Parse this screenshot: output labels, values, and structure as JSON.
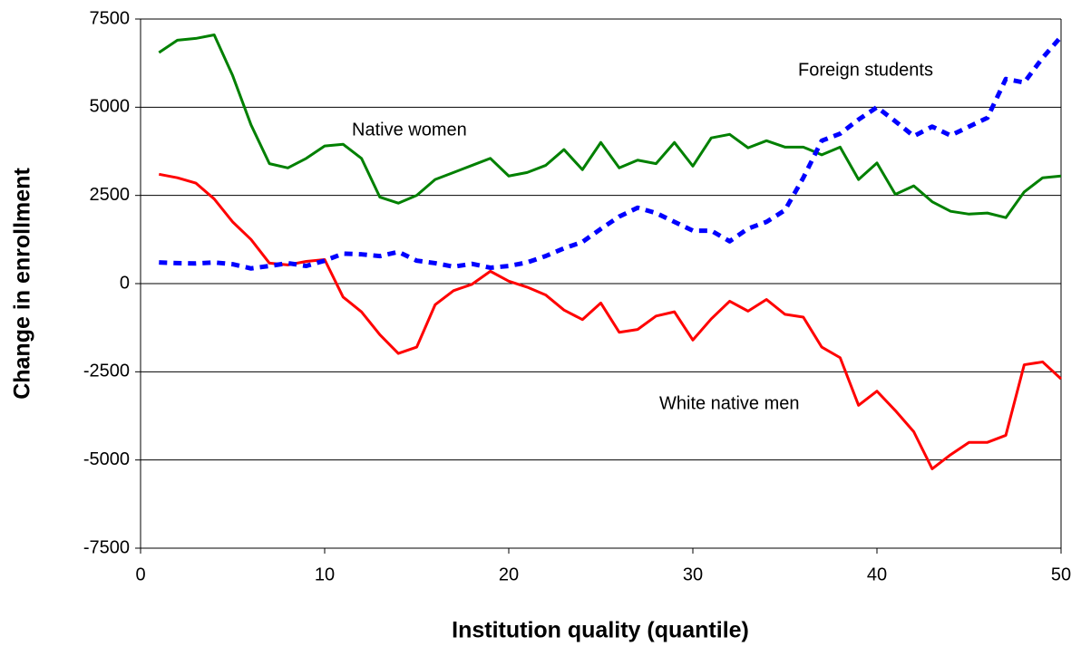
{
  "chart_data": {
    "type": "line",
    "xlabel": "Institution quality (quantile)",
    "ylabel": "Change in enrollment",
    "x": [
      1,
      2,
      3,
      4,
      5,
      6,
      7,
      8,
      9,
      10,
      11,
      12,
      13,
      14,
      15,
      16,
      17,
      18,
      19,
      20,
      21,
      22,
      23,
      24,
      25,
      26,
      27,
      28,
      29,
      30,
      31,
      32,
      33,
      34,
      35,
      36,
      37,
      38,
      39,
      40,
      41,
      42,
      43,
      44,
      45,
      46,
      47,
      48,
      49,
      50
    ],
    "series": [
      {
        "name": "Native women",
        "color": "#008000",
        "dashed": false,
        "values": [
          6550,
          6900,
          6950,
          7050,
          5900,
          4500,
          3400,
          3280,
          3550,
          3900,
          3950,
          3550,
          2450,
          2280,
          2500,
          2950,
          3150,
          3350,
          3550,
          3050,
          3150,
          3350,
          3800,
          3230,
          4000,
          3280,
          3500,
          3400,
          4000,
          3330,
          4130,
          4230,
          3850,
          4050,
          3870,
          3870,
          3650,
          3870,
          2950,
          3420,
          2530,
          2770,
          2320,
          2050,
          1970,
          2000,
          1870,
          2600,
          3000,
          3050
        ]
      },
      {
        "name": "White native men",
        "color": "#ff0000",
        "dashed": false,
        "values": [
          3100,
          3000,
          2850,
          2400,
          1750,
          1250,
          580,
          530,
          630,
          680,
          -380,
          -800,
          -1450,
          -1980,
          -1800,
          -600,
          -200,
          -20,
          350,
          70,
          -100,
          -320,
          -750,
          -1020,
          -550,
          -1380,
          -1300,
          -920,
          -800,
          -1600,
          -1000,
          -500,
          -780,
          -450,
          -870,
          -950,
          -1800,
          -2100,
          -3450,
          -3050,
          -3600,
          -4200,
          -5250,
          -4850,
          -4500,
          -4500,
          -4300,
          -2300,
          -2220,
          -2700
        ]
      },
      {
        "name": "Foreign students",
        "color": "#0000ff",
        "dashed": true,
        "values": [
          600,
          580,
          570,
          600,
          550,
          430,
          500,
          580,
          500,
          650,
          850,
          830,
          780,
          900,
          650,
          580,
          480,
          560,
          450,
          500,
          600,
          780,
          1000,
          1180,
          1550,
          1900,
          2150,
          2000,
          1750,
          1500,
          1500,
          1200,
          1560,
          1750,
          2080,
          3000,
          4050,
          4250,
          4650,
          5000,
          4600,
          4180,
          4450,
          4200,
          4450,
          4700,
          5800,
          5700,
          6400,
          7000
        ]
      }
    ],
    "xlim": [
      0,
      50
    ],
    "xticks": [
      0,
      10,
      20,
      30,
      40,
      50
    ],
    "ylim": [
      -7500,
      7500
    ],
    "yticks": [
      -7500,
      -5000,
      -2500,
      0,
      2500,
      5000,
      7500
    ],
    "grid": true
  }
}
